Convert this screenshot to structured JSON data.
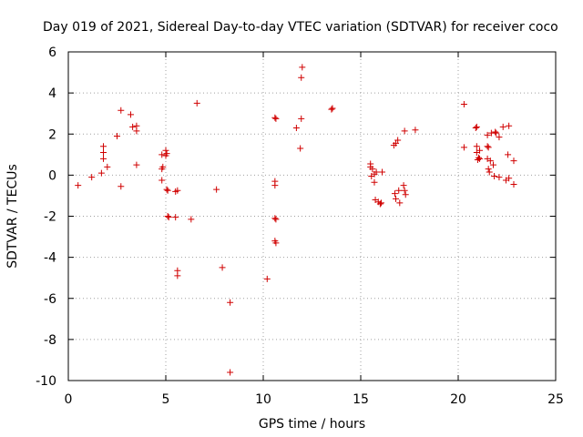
{
  "chart_data": {
    "type": "scatter",
    "title": "Day 019 of 2021, Sidereal Day-to-day VTEC variation (SDTVAR) for receiver coco",
    "xlabel": "GPS time / hours",
    "ylabel": "SDTVAR / TECUs",
    "xlim": [
      0,
      25
    ],
    "ylim": [
      -10,
      6
    ],
    "xticks": [
      0,
      5,
      10,
      15,
      20,
      25
    ],
    "yticks": [
      -10,
      -8,
      -6,
      -4,
      -2,
      0,
      2,
      4,
      6
    ],
    "grid": true,
    "marker": "plus",
    "color": "#d00000",
    "series": [
      {
        "name": "SDTVAR",
        "points": [
          [
            0.5,
            -0.5
          ],
          [
            1.2,
            -0.1
          ],
          [
            1.7,
            0.1
          ],
          [
            1.8,
            0.8
          ],
          [
            1.8,
            1.1
          ],
          [
            1.8,
            1.4
          ],
          [
            2.0,
            0.4
          ],
          [
            2.5,
            1.9
          ],
          [
            2.7,
            -0.55
          ],
          [
            2.7,
            3.15
          ],
          [
            3.2,
            2.95
          ],
          [
            3.3,
            2.35
          ],
          [
            3.5,
            2.15
          ],
          [
            3.5,
            2.4
          ],
          [
            3.5,
            0.5
          ],
          [
            4.8,
            1.0
          ],
          [
            4.8,
            0.3
          ],
          [
            4.8,
            -0.25
          ],
          [
            4.85,
            0.4
          ],
          [
            5.0,
            0.95
          ],
          [
            5.0,
            1.2
          ],
          [
            5.05,
            1.05
          ],
          [
            5.05,
            -0.7
          ],
          [
            5.1,
            -0.75
          ],
          [
            5.1,
            -2.0
          ],
          [
            5.15,
            -2.05
          ],
          [
            5.5,
            -0.8
          ],
          [
            5.6,
            -0.75
          ],
          [
            5.5,
            -2.05
          ],
          [
            5.6,
            -4.65
          ],
          [
            5.6,
            -4.9
          ],
          [
            6.3,
            -2.15
          ],
          [
            6.6,
            3.5
          ],
          [
            7.6,
            -0.7
          ],
          [
            7.9,
            -4.5
          ],
          [
            8.3,
            -6.2
          ],
          [
            8.3,
            -9.6
          ],
          [
            10.2,
            -5.05
          ],
          [
            10.6,
            2.8
          ],
          [
            10.65,
            2.75
          ],
          [
            10.6,
            -0.3
          ],
          [
            10.6,
            -0.5
          ],
          [
            10.6,
            -2.1
          ],
          [
            10.65,
            -2.15
          ],
          [
            10.6,
            -3.2
          ],
          [
            10.65,
            -3.3
          ],
          [
            11.7,
            2.3
          ],
          [
            11.9,
            1.3
          ],
          [
            11.95,
            2.75
          ],
          [
            11.95,
            4.75
          ],
          [
            12.0,
            5.25
          ],
          [
            13.5,
            3.2
          ],
          [
            13.55,
            3.25
          ],
          [
            15.5,
            0.55
          ],
          [
            15.5,
            0.4
          ],
          [
            15.55,
            -0.05
          ],
          [
            15.6,
            0.3
          ],
          [
            15.7,
            0.05
          ],
          [
            15.7,
            -0.35
          ],
          [
            15.75,
            -1.2
          ],
          [
            15.8,
            0.15
          ],
          [
            15.9,
            -1.3
          ],
          [
            16.0,
            -1.4
          ],
          [
            16.05,
            -1.35
          ],
          [
            16.1,
            0.15
          ],
          [
            16.7,
            1.45
          ],
          [
            16.8,
            1.55
          ],
          [
            16.75,
            -0.9
          ],
          [
            16.8,
            -1.15
          ],
          [
            16.95,
            -0.75
          ],
          [
            16.9,
            1.7
          ],
          [
            17.0,
            -1.35
          ],
          [
            17.2,
            -0.5
          ],
          [
            17.25,
            2.15
          ],
          [
            17.3,
            -0.95
          ],
          [
            17.25,
            -0.75
          ],
          [
            17.8,
            2.2
          ],
          [
            20.3,
            3.45
          ],
          [
            20.3,
            1.35
          ],
          [
            20.9,
            2.3
          ],
          [
            20.95,
            2.35
          ],
          [
            20.95,
            1.4
          ],
          [
            20.95,
            1.1
          ],
          [
            21.0,
            0.75
          ],
          [
            21.05,
            0.85
          ],
          [
            21.1,
            0.8
          ],
          [
            21.1,
            1.2
          ],
          [
            21.5,
            1.95
          ],
          [
            21.5,
            1.4
          ],
          [
            21.55,
            1.35
          ],
          [
            21.5,
            0.8
          ],
          [
            21.55,
            0.3
          ],
          [
            21.6,
            0.15
          ],
          [
            21.65,
            0.7
          ],
          [
            21.7,
            2.05
          ],
          [
            21.8,
            0.5
          ],
          [
            21.85,
            -0.05
          ],
          [
            21.9,
            2.1
          ],
          [
            21.95,
            2.05
          ],
          [
            22.1,
            1.85
          ],
          [
            22.1,
            -0.1
          ],
          [
            22.3,
            2.35
          ],
          [
            22.45,
            -0.25
          ],
          [
            22.55,
            1.0
          ],
          [
            22.6,
            2.4
          ],
          [
            22.6,
            -0.15
          ],
          [
            22.85,
            0.7
          ],
          [
            22.85,
            -0.45
          ]
        ]
      }
    ]
  }
}
